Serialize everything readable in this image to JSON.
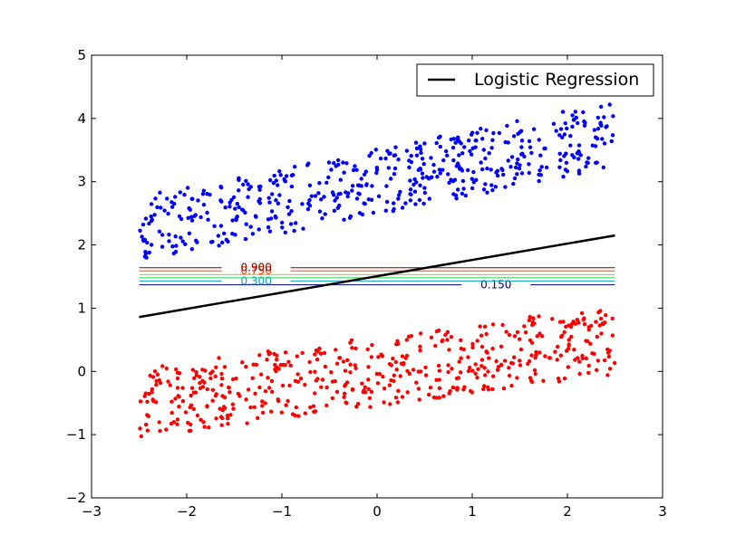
{
  "chart_data": {
    "type": "scatter",
    "xlim": [
      -3,
      3
    ],
    "ylim": [
      -2,
      5
    ],
    "x_ticks": [
      -3,
      -2,
      -1,
      0,
      1,
      2,
      3
    ],
    "y_ticks": [
      -2,
      -1,
      0,
      1,
      2,
      3,
      4,
      5
    ],
    "x_tick_labels": [
      "−3",
      "−2",
      "−1",
      "0",
      "1",
      "2",
      "3"
    ],
    "y_tick_labels": [
      "−2",
      "−1",
      "0",
      "1",
      "2",
      "3",
      "4",
      "5"
    ],
    "grid": false,
    "legend": {
      "placement": "top-right",
      "entries": [
        {
          "label": "Logistic Regression",
          "color": "#000000"
        }
      ]
    },
    "line": {
      "name": "Logistic Regression",
      "color": "#000000",
      "points": [
        {
          "x": -2.5,
          "y": 0.86
        },
        {
          "x": 2.5,
          "y": 2.15
        }
      ]
    },
    "scatter_clouds": [
      {
        "color": "#0000ff",
        "count": 500,
        "x_range": [
          -2.5,
          2.5
        ],
        "center_line": {
          "slope": 0.3,
          "intercept": 3.0
        },
        "spread": 0.52
      },
      {
        "color": "#ff0000",
        "count": 500,
        "x_range": [
          -2.5,
          2.5
        ],
        "center_line": {
          "slope": 0.2,
          "intercept": 0.0
        },
        "spread": 0.55
      }
    ],
    "contours": {
      "x_range": [
        -2.5,
        2.5
      ],
      "levels": [
        {
          "level": 0.15,
          "y": 1.37,
          "color": "#000080",
          "label": "0.150",
          "label_x": 1.25
        },
        {
          "level": 0.3,
          "y": 1.43,
          "color": "#00a0d0",
          "label": "0.300",
          "label_x": -1.27
        },
        {
          "level": 0.45,
          "y": 1.48,
          "color": "#20d050",
          "label": "",
          "label_x": null
        },
        {
          "level": 0.6,
          "y": 1.53,
          "color": "#c8c000",
          "label": "",
          "label_x": null
        },
        {
          "level": 0.75,
          "y": 1.59,
          "color": "#ff4000",
          "label": "0.750",
          "label_x": -1.27
        },
        {
          "level": 0.9,
          "y": 1.64,
          "color": "#800000",
          "label": "0.900",
          "label_x": -1.27
        }
      ]
    }
  }
}
